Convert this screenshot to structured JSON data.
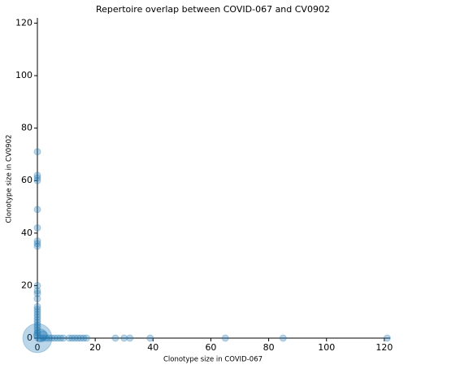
{
  "chart_data": {
    "type": "scatter",
    "title": "Repertoire overlap between COVID-067 and CV0902",
    "xlabel": "Clonotype size in COVID-067",
    "ylabel": "Clonotype size in CV0902",
    "series": [
      {
        "color": "#1f77b4",
        "x": [
          0,
          0,
          0,
          0,
          0,
          0,
          0,
          0,
          0,
          0,
          0,
          0,
          0,
          0,
          0,
          0,
          0,
          0,
          0,
          0,
          0,
          0,
          0,
          0,
          0,
          1,
          2,
          3,
          4,
          5,
          6,
          7,
          8,
          9,
          11,
          12,
          13,
          14,
          15,
          16,
          17,
          27,
          30,
          32,
          39,
          65,
          85,
          121,
          0,
          1,
          2
        ],
        "values": [
          71,
          62,
          61,
          60,
          49,
          42,
          37,
          36,
          35,
          20,
          18,
          17,
          15,
          12,
          11,
          10,
          9,
          8,
          7,
          6,
          5,
          4,
          3,
          2,
          1,
          0,
          0,
          0,
          0,
          0,
          0,
          0,
          0,
          0,
          0,
          0,
          0,
          0,
          0,
          0,
          0,
          0,
          0,
          0,
          0,
          0,
          0,
          0,
          0,
          1,
          1
        ],
        "sizes": [
          1,
          1,
          1,
          1,
          1,
          1,
          1,
          1,
          1,
          1,
          1,
          1,
          1,
          1,
          1,
          1,
          1,
          1,
          1,
          1,
          1,
          1,
          1,
          1,
          1,
          1,
          1,
          1,
          1,
          1,
          1,
          1,
          1,
          1,
          1,
          1,
          1,
          1,
          1,
          1,
          1,
          1,
          1,
          1,
          1,
          1,
          1,
          1,
          20,
          4,
          2
        ]
      }
    ],
    "xlim": [
      0,
      122
    ],
    "ylim": [
      0,
      122
    ],
    "xticks": [
      0,
      20,
      40,
      60,
      80,
      100,
      120
    ],
    "yticks": [
      0,
      20,
      40,
      60,
      80,
      100,
      120
    ],
    "grid": false
  }
}
